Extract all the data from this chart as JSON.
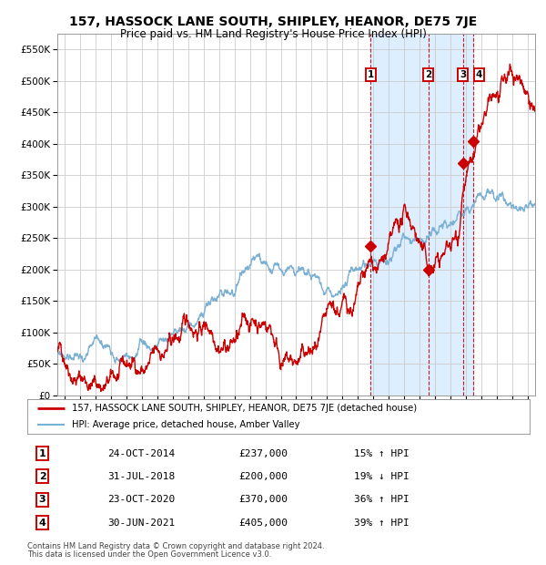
{
  "title": "157, HASSOCK LANE SOUTH, SHIPLEY, HEANOR, DE75 7JE",
  "subtitle": "Price paid vs. HM Land Registry's House Price Index (HPI)",
  "legend_line1": "157, HASSOCK LANE SOUTH, SHIPLEY, HEANOR, DE75 7JE (detached house)",
  "legend_line2": "HPI: Average price, detached house, Amber Valley",
  "footer1": "Contains HM Land Registry data © Crown copyright and database right 2024.",
  "footer2": "This data is licensed under the Open Government Licence v3.0.",
  "transactions": [
    {
      "id": 1,
      "date": "24-OCT-2014",
      "price": 237000,
      "pct": "15%",
      "dir": "↑",
      "year": 2014.82
    },
    {
      "id": 2,
      "date": "31-JUL-2018",
      "price": 200000,
      "pct": "19%",
      "dir": "↓",
      "year": 2018.58
    },
    {
      "id": 3,
      "date": "23-OCT-2020",
      "price": 370000,
      "pct": "36%",
      "dir": "↑",
      "year": 2020.82
    },
    {
      "id": 4,
      "date": "30-JUN-2021",
      "price": 405000,
      "pct": "39%",
      "dir": "↑",
      "year": 2021.5
    }
  ],
  "red_color": "#cc0000",
  "blue_color": "#7ab0d4",
  "shade_color": "#ddeeff",
  "dashed_color": "#cc0000",
  "bg_color": "#ffffff",
  "grid_color": "#cccccc",
  "ylim": [
    0,
    575000
  ],
  "yticks": [
    0,
    50000,
    100000,
    150000,
    200000,
    250000,
    300000,
    350000,
    400000,
    450000,
    500000,
    550000
  ],
  "ytick_labels": [
    "£0",
    "£50K",
    "£100K",
    "£150K",
    "£200K",
    "£250K",
    "£300K",
    "£350K",
    "£400K",
    "£450K",
    "£500K",
    "£550K"
  ],
  "xlim_start": 1994.5,
  "xlim_end": 2025.5,
  "xticks": [
    1995,
    1996,
    1997,
    1998,
    1999,
    2000,
    2001,
    2002,
    2003,
    2004,
    2005,
    2006,
    2007,
    2008,
    2009,
    2010,
    2011,
    2012,
    2013,
    2014,
    2015,
    2016,
    2017,
    2018,
    2019,
    2020,
    2021,
    2022,
    2023,
    2024,
    2025
  ],
  "table_rows": [
    [
      "1",
      "24-OCT-2014",
      "£237,000",
      "15% ↑ HPI"
    ],
    [
      "2",
      "31-JUL-2018",
      "£200,000",
      "19% ↓ HPI"
    ],
    [
      "3",
      "23-OCT-2020",
      "£370,000",
      "36% ↑ HPI"
    ],
    [
      "4",
      "30-JUN-2021",
      "£405,000",
      "39% ↑ HPI"
    ]
  ]
}
